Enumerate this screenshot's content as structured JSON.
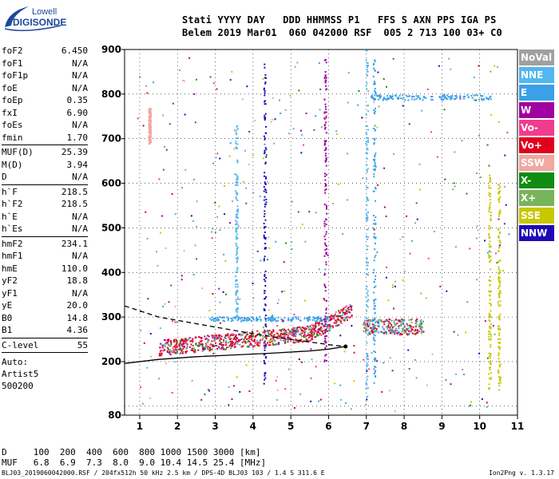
{
  "logo": {
    "line1": "Lowell",
    "line2": "DIGISONDE",
    "color": "#1a4a9a"
  },
  "header": {
    "labels": "Stati YYYY DAY   DDD HHMMSS P1   FFS S AXN PPS IGA PS",
    "values": "Belem 2019 Mar01  060 042000 RSF  005 2 713 100 03+ C0"
  },
  "params": [
    {
      "k": "foF2",
      "v": "6.450"
    },
    {
      "k": "foF1",
      "v": "N/A"
    },
    {
      "k": "foF1p",
      "v": "N/A"
    },
    {
      "k": "foE",
      "v": "N/A"
    },
    {
      "k": "foEp",
      "v": "0.35"
    },
    {
      "k": "fxI",
      "v": "6.90"
    },
    {
      "k": "foEs",
      "v": "N/A"
    },
    {
      "k": "fmin",
      "v": "1.70"
    },
    {
      "sep": true
    },
    {
      "k": "MUF(D)",
      "v": "25.39"
    },
    {
      "k": "M(D)",
      "v": "3.94"
    },
    {
      "k": "D",
      "v": "N/A"
    },
    {
      "sep": true
    },
    {
      "k": "h`F",
      "v": "218.5"
    },
    {
      "k": "h`F2",
      "v": "218.5"
    },
    {
      "k": "h`E",
      "v": "N/A"
    },
    {
      "k": "h`Es",
      "v": "N/A"
    },
    {
      "sep": true
    },
    {
      "k": "hmF2",
      "v": "234.1"
    },
    {
      "k": "hmF1",
      "v": "N/A"
    },
    {
      "k": "hmE",
      "v": "110.0"
    },
    {
      "k": "yF2",
      "v": "18.8"
    },
    {
      "k": "yF1",
      "v": "N/A"
    },
    {
      "k": "yE",
      "v": "20.0"
    },
    {
      "k": "B0",
      "v": "14.8"
    },
    {
      "k": "B1",
      "v": "4.36"
    },
    {
      "sep": true
    },
    {
      "k": "C-level",
      "v": "55"
    },
    {
      "sep": true
    }
  ],
  "auto": [
    "Auto:",
    "Artist5",
    "500200"
  ],
  "legend": [
    {
      "label": "NoVal",
      "color": "#a0a0a0"
    },
    {
      "label": "NNE",
      "color": "#52b7f0"
    },
    {
      "label": "E",
      "color": "#3aa0e8"
    },
    {
      "label": "W",
      "color": "#a000a0"
    },
    {
      "label": "Vo-",
      "color": "#f03c8c"
    },
    {
      "label": "Vo+",
      "color": "#e0001e"
    },
    {
      "label": "SSW",
      "color": "#f0a8a0"
    },
    {
      "label": "X-",
      "color": "#108c10"
    },
    {
      "label": "X+",
      "color": "#78b45a"
    },
    {
      "label": "SSE",
      "color": "#c8c800"
    },
    {
      "label": "NNW",
      "color": "#1e0ab4"
    }
  ],
  "bottom": {
    "d_row": "D     100  200  400  600  800 1000 1500 3000 [km]",
    "muf_row": "MUF   6.8  6.9  7.3  8.0  9.0 10.4 14.5 25.4 [MHz]"
  },
  "footer": "BLJ03_2019060042000.RSF / 204fx512h 50 kHz 2.5 km / DPS-4D BLJ03 103 / 1.4 S 311.6 E",
  "version": "Ion2Png v. 1.3.17",
  "chart_data": {
    "type": "scatter",
    "xlim": [
      0.6,
      11
    ],
    "ylim": [
      80,
      900
    ],
    "x_ticks": [
      1,
      2,
      3,
      4,
      5,
      6,
      7,
      8,
      9,
      10,
      11
    ],
    "y_ticks": [
      80,
      100,
      200,
      300,
      400,
      500,
      600,
      700,
      800,
      900
    ],
    "y_tick_labels": [
      "80",
      "100",
      "200",
      "300",
      "400",
      "500",
      "600",
      "700",
      "800",
      "900"
    ],
    "trace_point": [
      6.45,
      234
    ],
    "profile_solid": [
      [
        0.6,
        196
      ],
      [
        1.5,
        205
      ],
      [
        2.5,
        211
      ],
      [
        3.5,
        215
      ],
      [
        4.5,
        219
      ],
      [
        5.5,
        224
      ],
      [
        6,
        228
      ],
      [
        6.45,
        234
      ]
    ],
    "profile_dashed": [
      [
        0.6,
        325
      ],
      [
        1.5,
        300
      ],
      [
        2.5,
        285
      ],
      [
        3.5,
        270
      ],
      [
        4.5,
        256
      ],
      [
        5.5,
        244
      ],
      [
        6.2,
        236
      ],
      [
        6.45,
        234
      ]
    ]
  }
}
